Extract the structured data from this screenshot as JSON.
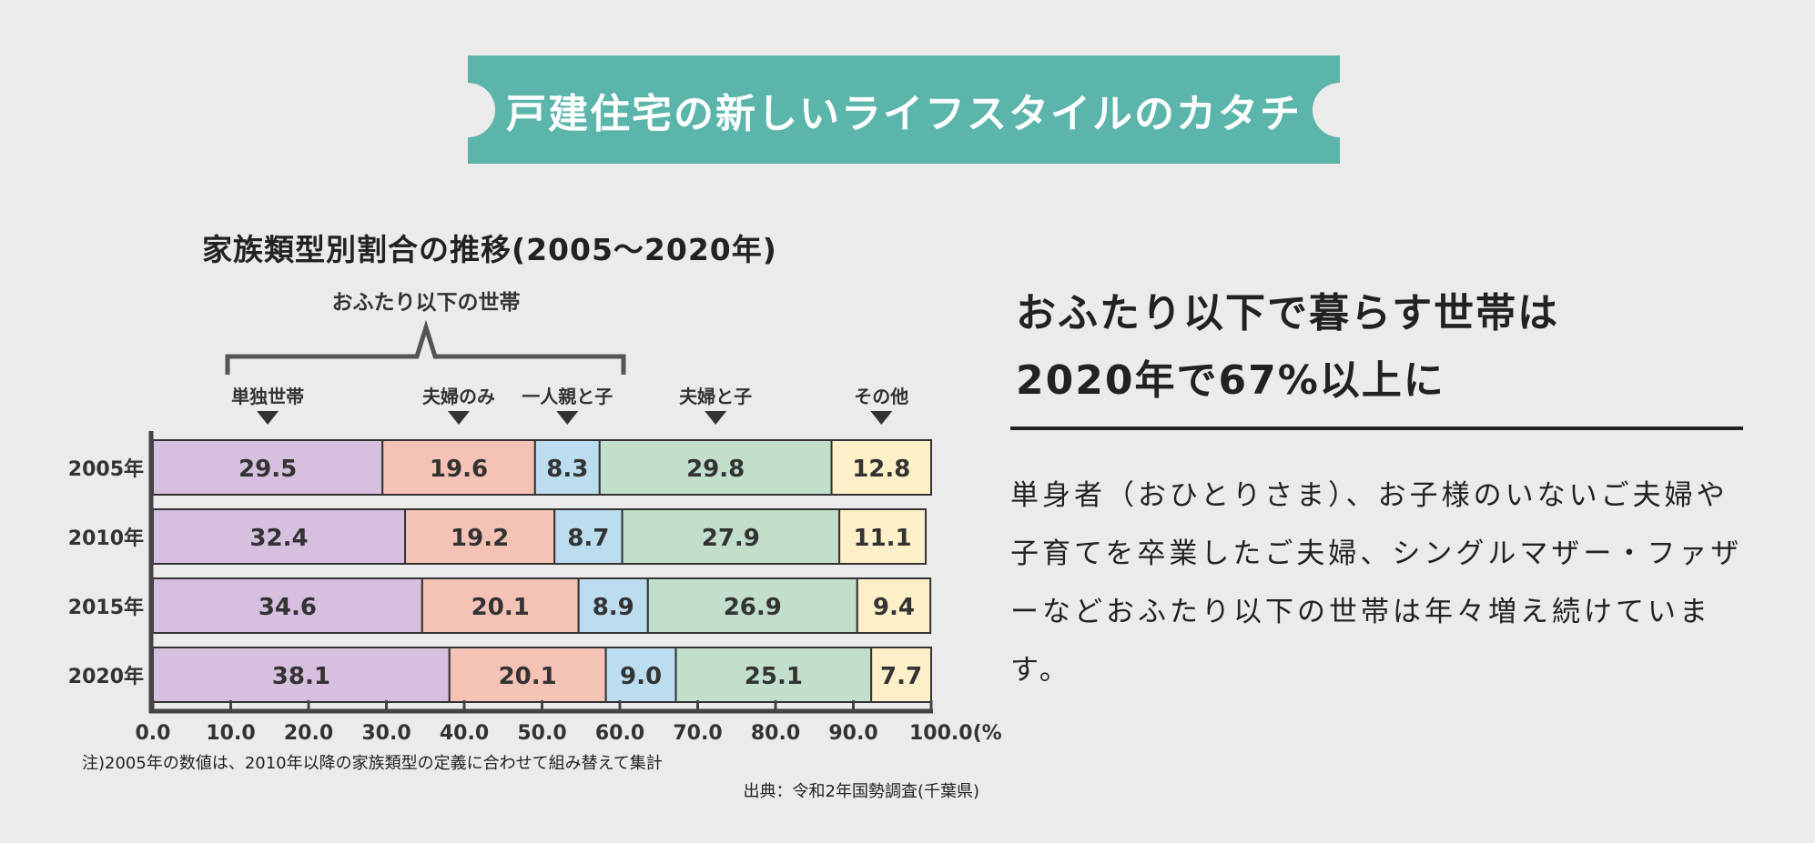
{
  "banner": {
    "title": "戸建住宅の新しいライフスタイルのカタチ"
  },
  "headline": {
    "line1": "おふたり以下で暮らす世帯は",
    "line2": "2020年で67%以上に"
  },
  "body_text": "単身者（おひとりさま）、お子様のいないご夫婦や子育てを卒業したご夫婦、シングルマザー・ファザーなどおふたり以下の世帯は年々増え続けています。",
  "footnote": "注)2005年の数値は、2010年以降の家族類型の定義に合わせて組み替えて集計",
  "source": "出典：令和2年国勢調査(千葉県)",
  "chart_data": {
    "type": "bar",
    "orientation": "horizontal",
    "stacked": true,
    "title": "家族類型別割合の推移(2005〜2020年)",
    "bracket_label": "おふたり以下の世帯",
    "categories": [
      "2005年",
      "2010年",
      "2015年",
      "2020年"
    ],
    "series": [
      {
        "name": "単独世帯",
        "color": "#d7bfdf",
        "values": [
          29.5,
          32.4,
          34.6,
          38.1
        ]
      },
      {
        "name": "夫婦のみ",
        "color": "#f5c3b6",
        "values": [
          19.6,
          19.2,
          20.1,
          20.1
        ]
      },
      {
        "name": "一人親と子",
        "color": "#bcdcf0",
        "values": [
          8.3,
          8.7,
          8.9,
          9.0
        ]
      },
      {
        "name": "夫婦と子",
        "color": "#c2dfcc",
        "values": [
          29.8,
          27.9,
          26.9,
          25.1
        ]
      },
      {
        "name": "その他",
        "color": "#fdf0c8",
        "values": [
          12.8,
          11.1,
          9.4,
          7.7
        ]
      }
    ],
    "xlim": [
      0,
      100
    ],
    "xticks": [
      0,
      10,
      20,
      30,
      40,
      50,
      60,
      70,
      80,
      90,
      100
    ],
    "xtick_labels": [
      "0.0",
      "10.0",
      "20.0",
      "30.0",
      "40.0",
      "50.0",
      "60.0",
      "70.0",
      "80.0",
      "90.0",
      "100.0(%)"
    ],
    "xlabel": "",
    "ylabel": ""
  }
}
